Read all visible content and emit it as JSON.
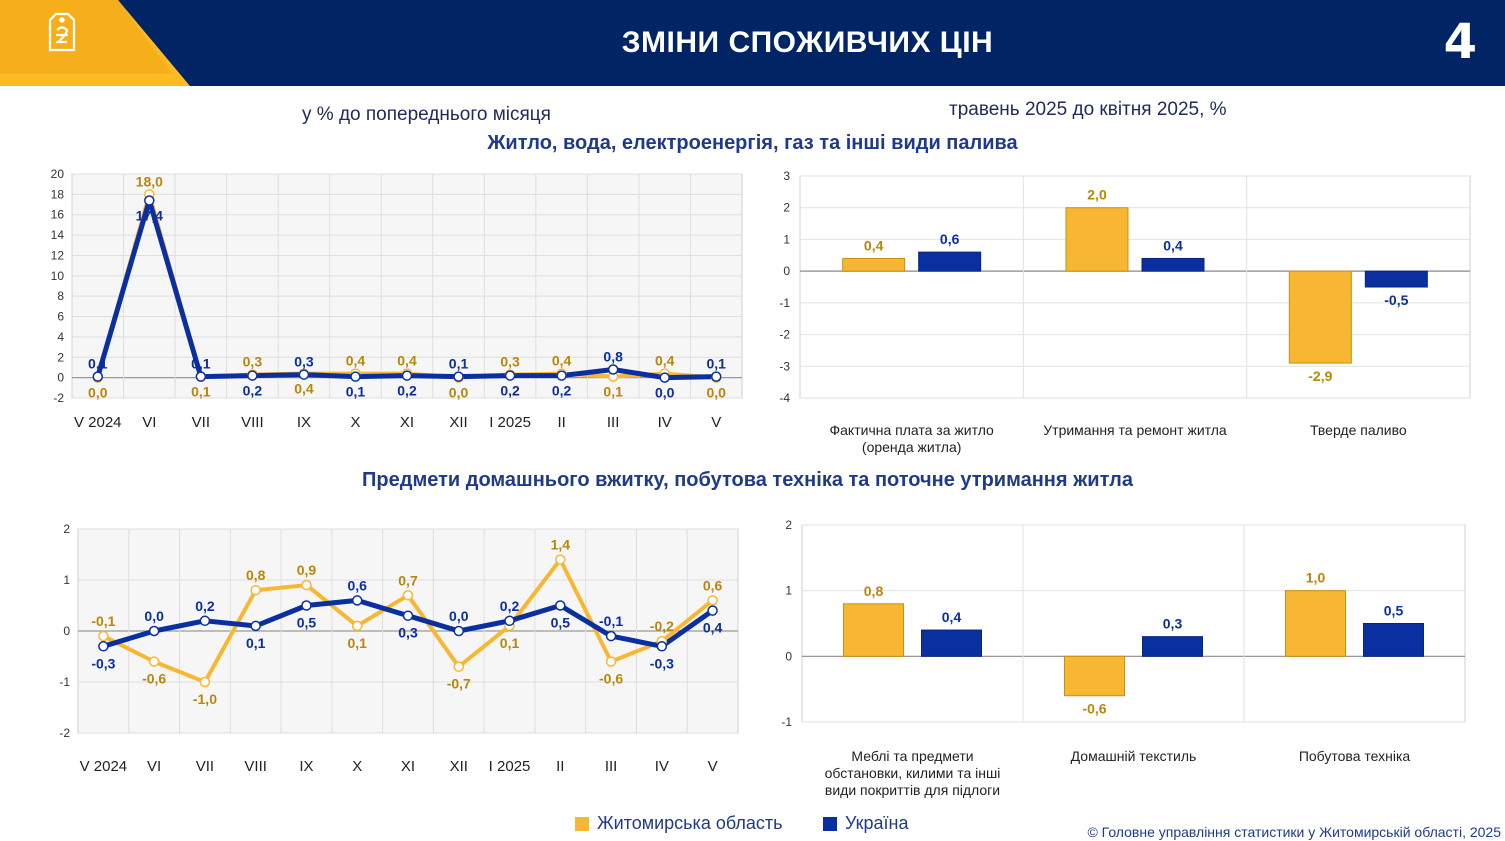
{
  "header": {
    "title": "ЗМІНИ СПОЖИВЧИХ ЦІН",
    "page_number": "4",
    "colors": {
      "navy": "#002464",
      "gold": "#FDBB23"
    }
  },
  "subtitles": {
    "left": "у % до попереднього місяця",
    "right": "травень 2025 до квітня 2025, %"
  },
  "sections": {
    "housing": "Житло, вода, електроенергія, газ та інші види палива",
    "household": "Предмети домашнього вжитку, побутова техніка та поточне утримання житла"
  },
  "legend": {
    "series_a": "Житомирська область",
    "series_b": "Україна",
    "color_a": "#F7B733",
    "color_b": "#0A2FA0"
  },
  "footer": "© Головне управління статистики у Житомирській області, 2025",
  "chart_data": [
    {
      "type": "line",
      "categories": [
        "V 2024",
        "VI",
        "VII",
        "VIII",
        "IX",
        "X",
        "XI",
        "XII",
        "I 2025",
        "II",
        "III",
        "IV",
        "V"
      ],
      "ylim": [
        -2,
        20
      ],
      "yticks": [
        -2,
        0,
        2,
        4,
        6,
        8,
        10,
        12,
        14,
        16,
        18,
        20
      ],
      "grid": true,
      "series": [
        {
          "name": "Житомирська область",
          "values": [
            0.0,
            18.0,
            0.1,
            0.3,
            0.4,
            0.4,
            0.4,
            0.0,
            0.3,
            0.4,
            0.1,
            0.4,
            0.0
          ]
        },
        {
          "name": "Україна",
          "values": [
            0.1,
            17.4,
            0.1,
            0.2,
            0.3,
            0.1,
            0.2,
            0.1,
            0.2,
            0.2,
            0.8,
            0.0,
            0.1
          ]
        }
      ]
    },
    {
      "type": "bar",
      "categories": [
        "Фактична плата за житло (оренда житла)",
        "Утримання та ремонт житла",
        "Тверде паливо"
      ],
      "ylim": [
        -4,
        3
      ],
      "yticks": [
        -4,
        -3,
        -2,
        -1,
        0,
        1,
        2,
        3
      ],
      "grid": true,
      "series": [
        {
          "name": "Житомирська область",
          "values": [
            0.4,
            2.0,
            -2.9
          ]
        },
        {
          "name": "Україна",
          "values": [
            0.6,
            0.4,
            -0.5
          ]
        }
      ]
    },
    {
      "type": "line",
      "categories": [
        "V 2024",
        "VI",
        "VII",
        "VIII",
        "IX",
        "X",
        "XI",
        "XII",
        "I 2025",
        "II",
        "III",
        "IV",
        "V"
      ],
      "ylim": [
        -2,
        2
      ],
      "yticks": [
        -2,
        -1,
        0,
        1,
        2
      ],
      "grid": true,
      "series": [
        {
          "name": "Житомирська область",
          "values": [
            -0.1,
            -0.6,
            -1.0,
            0.8,
            0.9,
            0.1,
            0.7,
            -0.7,
            0.1,
            1.4,
            -0.6,
            -0.2,
            0.6
          ]
        },
        {
          "name": "Україна",
          "values": [
            -0.3,
            0.0,
            0.2,
            0.1,
            0.5,
            0.6,
            0.3,
            0.0,
            0.2,
            0.5,
            -0.1,
            -0.3,
            0.4
          ]
        }
      ]
    },
    {
      "type": "bar",
      "categories": [
        "Меблі та предмети обстановки, килими та інші види покриттів для підлоги",
        "Домашній текстиль",
        "Побутова техніка"
      ],
      "ylim": [
        -1,
        2
      ],
      "yticks": [
        -1,
        0,
        1,
        2
      ],
      "grid": true,
      "series": [
        {
          "name": "Житомирська область",
          "values": [
            0.8,
            -0.6,
            1.0
          ]
        },
        {
          "name": "Україна",
          "values": [
            0.4,
            0.3,
            0.5
          ]
        }
      ]
    }
  ]
}
